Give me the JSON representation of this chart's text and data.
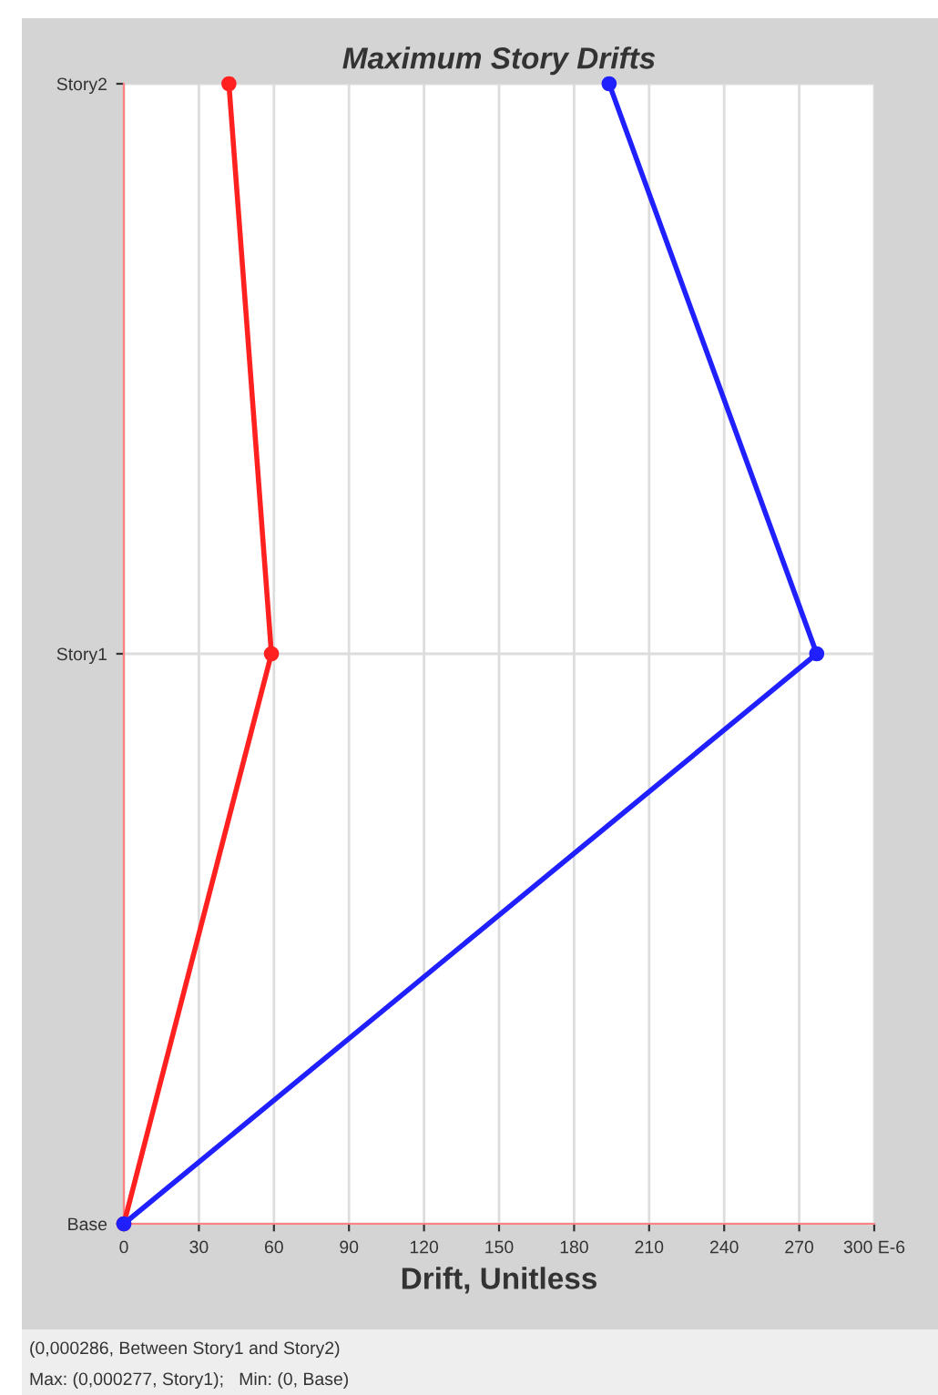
{
  "chart_data": {
    "type": "line",
    "orientation": "horizontal",
    "title": "Maximum Story Drifts",
    "xlabel": "Drift, Unitless",
    "categories": [
      "Story2",
      "Story1",
      "Base"
    ],
    "series": [
      {
        "color": "#ff2020",
        "values": [
          42,
          59,
          0
        ]
      },
      {
        "color": "#2020ff",
        "values": [
          194,
          277,
          0
        ]
      }
    ],
    "xlim": [
      0,
      300
    ],
    "xticks": [
      0,
      30,
      60,
      90,
      120,
      150,
      180,
      210,
      240,
      270,
      {
        "value": 300,
        "label": "300 E-6"
      }
    ],
    "grid": true,
    "marker": "circle",
    "annotations": [
      "(0,000286, Between Story1 and Story2)",
      "Max: (0,000277, Story1);   Min: (0, Base)"
    ]
  }
}
